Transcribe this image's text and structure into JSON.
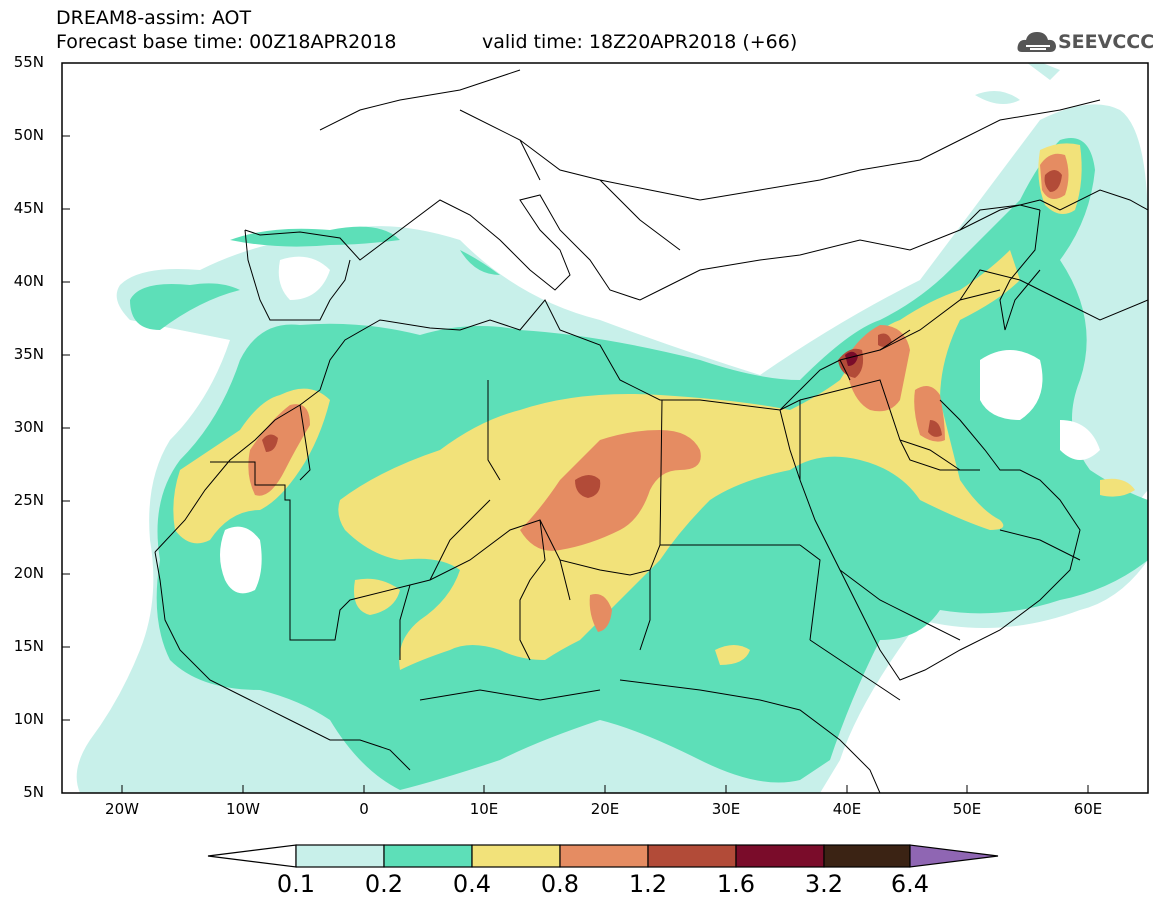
{
  "header": {
    "title": "DREAM8-assim: AOT",
    "base_time": "Forecast base time: 00Z18APR2018",
    "valid_time": "valid time: 18Z20APR2018 (+66)"
  },
  "logo": {
    "text": "SEEVCCC",
    "icon": "cloud-icon"
  },
  "map": {
    "variable": "AOT",
    "projection": "lat-lon",
    "lon_range": [
      -25,
      65
    ],
    "lat_range": [
      5,
      55
    ],
    "lat_ticks": [
      "55N",
      "50N",
      "45N",
      "40N",
      "35N",
      "30N",
      "25N",
      "20N",
      "15N",
      "10N",
      "5N"
    ],
    "lon_ticks": [
      "20W",
      "10W",
      "0",
      "10E",
      "20E",
      "30E",
      "40E",
      "50E",
      "60E"
    ],
    "maxima": [
      {
        "lon": 40.5,
        "lat": 34.5,
        "level": "1.6-3.2"
      },
      {
        "lon": 19,
        "lat": 26,
        "level": "1.2-1.6"
      },
      {
        "lon": -7.5,
        "lat": 29.5,
        "level": "1.2-1.6"
      },
      {
        "lon": 57,
        "lat": 46.5,
        "level": "1.2-1.6"
      }
    ]
  },
  "colorbar": {
    "levels": [
      "0.1",
      "0.2",
      "0.4",
      "0.8",
      "1.2",
      "1.6",
      "3.2",
      "6.4"
    ],
    "colors": [
      "#c8f0ea",
      "#5ddfb8",
      "#f2e27a",
      "#e58c62",
      "#b24b38",
      "#7a0c2a",
      "#3b2314",
      "#8f66b3"
    ],
    "low_color": "#ffffff"
  }
}
